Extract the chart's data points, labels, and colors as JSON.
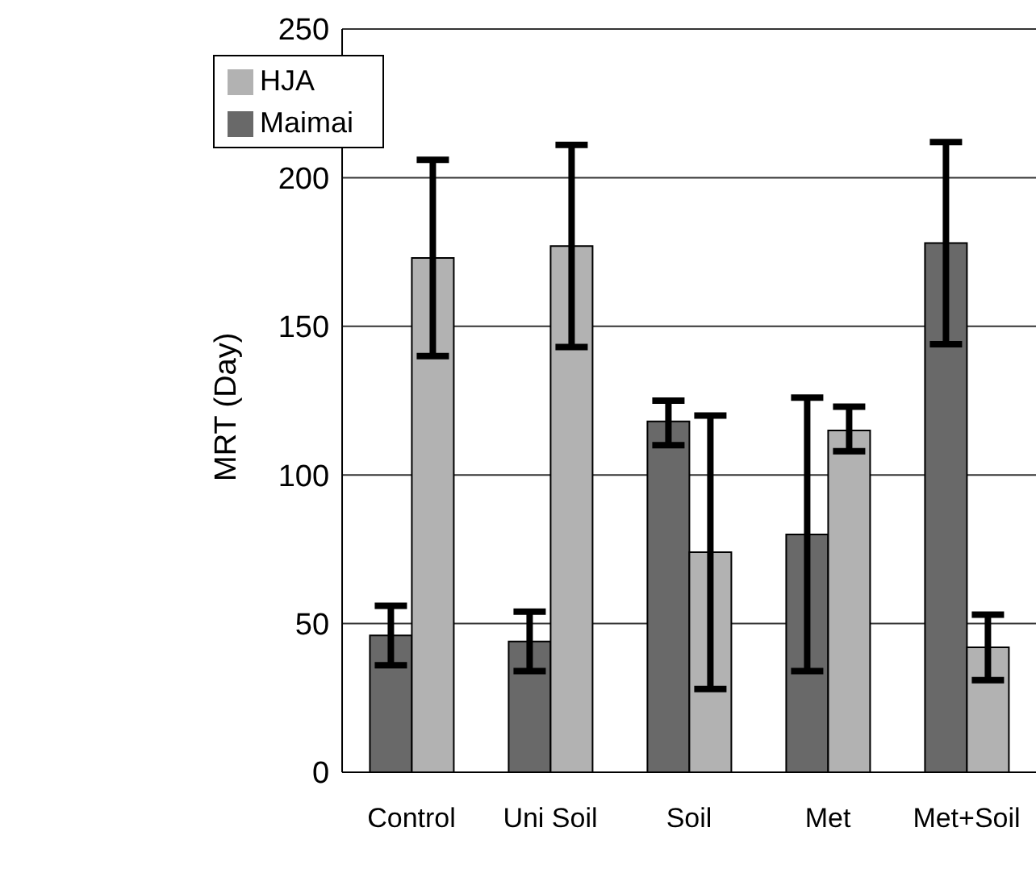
{
  "chart_data": {
    "type": "bar",
    "ylabel": "MRT (Day)",
    "categories": [
      "Control",
      "Uni Soil",
      "Soil",
      "Met",
      "Met+Soil"
    ],
    "series": [
      {
        "name": "Maimai",
        "color": "#696969",
        "values": [
          46,
          44,
          118,
          80,
          178
        ],
        "errors": [
          [
            36,
            56
          ],
          [
            34,
            54
          ],
          [
            110,
            125
          ],
          [
            34,
            126
          ],
          [
            144,
            212
          ]
        ]
      },
      {
        "name": "HJA",
        "color": "#b2b2b2",
        "values": [
          173,
          177,
          74,
          115,
          42
        ],
        "errors": [
          [
            140,
            206
          ],
          [
            143,
            211
          ],
          [
            28,
            120
          ],
          [
            108,
            123
          ],
          [
            31,
            53
          ]
        ]
      }
    ],
    "ylim": [
      0,
      250
    ],
    "yticks": [
      0,
      50,
      100,
      150,
      200,
      250
    ],
    "grid": "y",
    "legend": "top left"
  }
}
